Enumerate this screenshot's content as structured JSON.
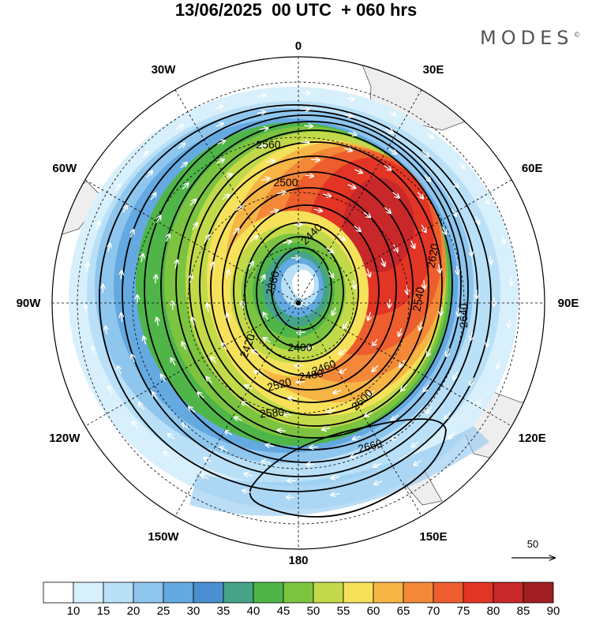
{
  "title": "13/06/2025  00 UTC  + 060 hrs",
  "brand": {
    "name": "MODES",
    "mark": "©"
  },
  "longitude_labels": [
    {
      "label": "0",
      "lon": 0
    },
    {
      "label": "30E",
      "lon": 30
    },
    {
      "label": "60E",
      "lon": 60
    },
    {
      "label": "90E",
      "lon": 90
    },
    {
      "label": "120E",
      "lon": 120
    },
    {
      "label": "150E",
      "lon": 150
    },
    {
      "label": "180",
      "lon": 180
    },
    {
      "label": "150W",
      "lon": -150
    },
    {
      "label": "120W",
      "lon": -120
    },
    {
      "label": "90W",
      "lon": -90
    },
    {
      "label": "60W",
      "lon": -60
    },
    {
      "label": "30W",
      "lon": -30
    }
  ],
  "contour_labels": [
    "2380",
    "2400",
    "2420",
    "2440",
    "2460",
    "2480",
    "2500",
    "2520",
    "2540",
    "2560",
    "2580",
    "2600",
    "2620",
    "2640",
    "2660"
  ],
  "colorbar": {
    "labels": [
      "10",
      "15",
      "20",
      "25",
      "30",
      "35",
      "40",
      "45",
      "50",
      "55",
      "60",
      "65",
      "70",
      "75",
      "80",
      "85",
      "90"
    ],
    "colors": [
      "#ffffff",
      "#d8effc",
      "#b9e0f7",
      "#8ec6ee",
      "#64a9e0",
      "#4a8fcf",
      "#46a38a",
      "#4fb548",
      "#7cc440",
      "#c2da4a",
      "#f6e15a",
      "#f6b545",
      "#f38938",
      "#ee5d2d",
      "#e23525",
      "#c8282a",
      "#a01e22"
    ]
  },
  "vector_reference": {
    "label": "50"
  }
}
